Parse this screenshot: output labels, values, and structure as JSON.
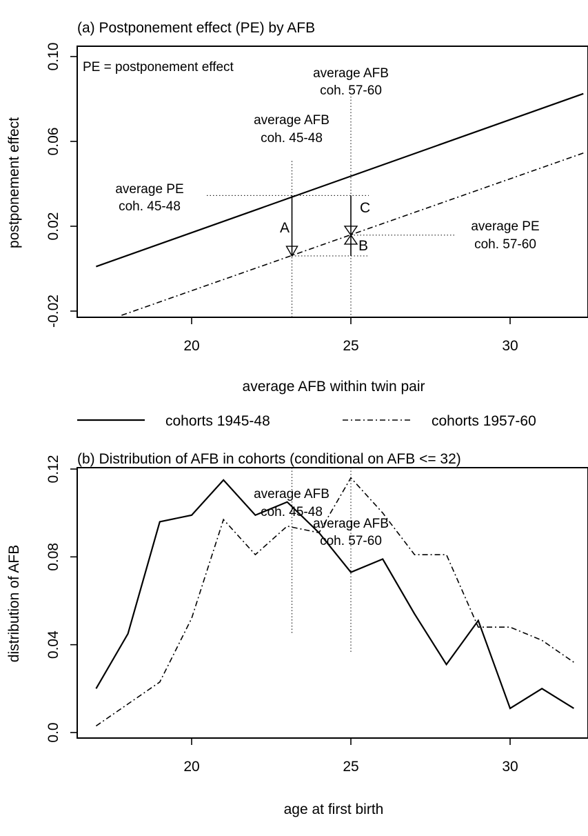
{
  "chart_data": [
    {
      "type": "line",
      "title": "(a) Postponement effect (PE) by AFB",
      "xlabel": "average AFB within twin pair",
      "ylabel": "postponement effect",
      "xlim": [
        16,
        32.3
      ],
      "ylim": [
        -0.025,
        0.105
      ],
      "x_ticks": [
        "20",
        "25",
        "30"
      ],
      "y_ticks": [
        "-0.02",
        "0.02",
        "0.06",
        "0.10"
      ],
      "grid": false,
      "series": [
        {
          "name": "cohorts 1945-48",
          "style": "solid",
          "x": [
            17.0,
            32.3
          ],
          "y": [
            0.001,
            0.0825
          ]
        },
        {
          "name": "cohorts 1957-60",
          "style": "dashdot",
          "x": [
            17.8,
            32.3
          ],
          "y": [
            -0.022,
            0.0545
          ]
        }
      ],
      "note_text": "PE = postponement effect",
      "annotations": [
        {
          "line1": "average AFB",
          "line2": "coh. 57-60"
        },
        {
          "line1": "average AFB",
          "line2": "coh. 45-48"
        },
        {
          "line1": "average PE",
          "line2": "coh. 45-48"
        },
        {
          "line1": "average PE",
          "line2": "coh. 57-60"
        }
      ],
      "markers": {
        "A": "A",
        "B": "B",
        "C": "C"
      },
      "reference": {
        "afb_45_48": 23.15,
        "afb_57_60": 25.0,
        "pe_45_48": 0.0345,
        "pe_57_60": 0.0158,
        "pe_line2_at_afb45": 0.006,
        "pe_line1_at_afb57": 0.0345
      }
    },
    {
      "type": "line",
      "title": "(b) Distribution of AFB in cohorts (conditional on AFB <= 32)",
      "xlabel": "age at first birth",
      "ylabel": "distribution of AFB",
      "xlim": [
        16,
        32.3
      ],
      "ylim": [
        -0.002,
        0.122
      ],
      "x_ticks": [
        "20",
        "25",
        "30"
      ],
      "y_ticks": [
        "0.0",
        "0.04",
        "0.08",
        "0.12"
      ],
      "grid": false,
      "x": [
        17,
        18,
        19,
        20,
        21,
        22,
        23,
        24,
        25,
        26,
        27,
        28,
        29,
        30,
        31,
        32
      ],
      "series": [
        {
          "name": "cohorts 1945-48",
          "style": "solid",
          "values": [
            0.02,
            0.045,
            0.096,
            0.099,
            0.115,
            0.099,
            0.105,
            0.091,
            0.073,
            0.079,
            0.054,
            0.031,
            0.051,
            0.011,
            0.02,
            0.011
          ]
        },
        {
          "name": "cohorts 1957-60",
          "style": "dashdot",
          "values": [
            0.003,
            0.013,
            0.023,
            0.052,
            0.097,
            0.081,
            0.094,
            0.091,
            0.116,
            0.1,
            0.081,
            0.081,
            0.048,
            0.048,
            0.042,
            0.032
          ]
        }
      ],
      "annotations": [
        {
          "line1": "average AFB",
          "line2": "coh. 45-48"
        },
        {
          "line1": "average AFB",
          "line2": "coh. 57-60"
        }
      ],
      "reference": {
        "afb_45_48": 23.15,
        "afb_57_60": 25.0
      }
    }
  ],
  "legend": {
    "items": [
      {
        "label": "cohorts 1945-48",
        "style": "solid"
      },
      {
        "label": "cohorts 1957-60",
        "style": "dashdot"
      }
    ]
  }
}
